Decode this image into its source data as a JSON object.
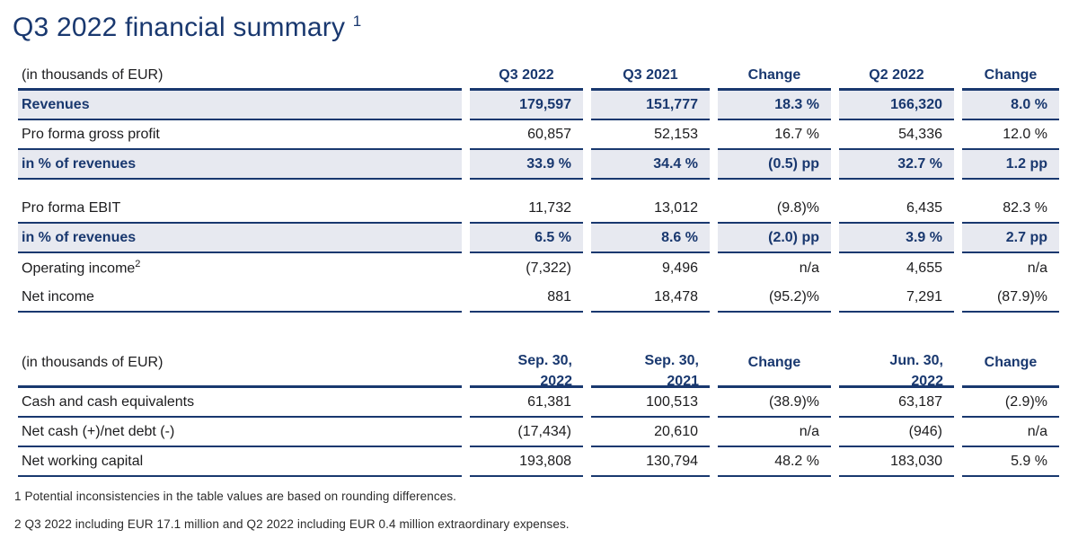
{
  "page": {
    "title": "Q3 2022 financial summary",
    "title_superscript": "1"
  },
  "colors": {
    "accent_navy": "#19386f",
    "highlight_row_bg": "#e7e9f0",
    "body_text": "#1c1c1e",
    "background": "#ffffff"
  },
  "table1": {
    "unit_label": "(in thousands of EUR)",
    "columns": [
      "Q3 2022",
      "Q3 2021",
      "Change",
      "Q2 2022",
      "Change"
    ],
    "rows": [
      {
        "label": "Revenues",
        "values": [
          "179,597",
          "151,777",
          "18.3 %",
          "166,320",
          "8.0 %"
        ]
      },
      {
        "label": "Pro forma gross profit",
        "values": [
          "60,857",
          "52,153",
          "16.7 %",
          "54,336",
          "12.0 %"
        ]
      },
      {
        "label": "in % of revenues",
        "values": [
          "33.9 %",
          "34.4 %",
          "(0.5) pp",
          "32.7 %",
          "1.2 pp"
        ]
      },
      {
        "label": "Pro forma EBIT",
        "values": [
          "11,732",
          "13,012",
          "(9.8)%",
          "6,435",
          "82.3 %"
        ]
      },
      {
        "label": "in % of revenues",
        "values": [
          "6.5 %",
          "8.6 %",
          "(2.0) pp",
          "3.9 %",
          "2.7 pp"
        ]
      },
      {
        "label": "Operating income",
        "label_superscript": "2",
        "values": [
          "(7,322)",
          "9,496",
          "n/a",
          "4,655",
          "n/a"
        ]
      },
      {
        "label": "Net income",
        "values": [
          "881",
          "18,478",
          "(95.2)%",
          "7,291",
          "(87.9)%"
        ]
      }
    ]
  },
  "table2": {
    "unit_label": "(in thousands of EUR)",
    "columns": [
      {
        "line1": "Sep. 30,",
        "line2": "2022"
      },
      {
        "line1": "Sep. 30,",
        "line2": "2021"
      },
      {
        "line1": "Change",
        "line2": ""
      },
      {
        "line1": "Jun. 30,",
        "line2": "2022"
      },
      {
        "line1": "Change",
        "line2": ""
      }
    ],
    "rows": [
      {
        "label": "Cash and cash equivalents",
        "values": [
          "61,381",
          "100,513",
          "(38.9)%",
          "63,187",
          "(2.9)%"
        ]
      },
      {
        "label": "Net cash (+)/net debt (-)",
        "values": [
          "(17,434)",
          "20,610",
          "n/a",
          "(946)",
          "n/a"
        ]
      },
      {
        "label": "Net working capital",
        "values": [
          "193,808",
          "130,794",
          "48.2 %",
          "183,030",
          "5.9 %"
        ]
      }
    ]
  },
  "footnotes": [
    {
      "marker": "1",
      "text": "Potential inconsistencies in the table values are based on rounding differences."
    },
    {
      "marker": "2",
      "text": "Q3 2022 including EUR 17.1 million and Q2 2022 including EUR 0.4 million extraordinary expenses."
    }
  ]
}
